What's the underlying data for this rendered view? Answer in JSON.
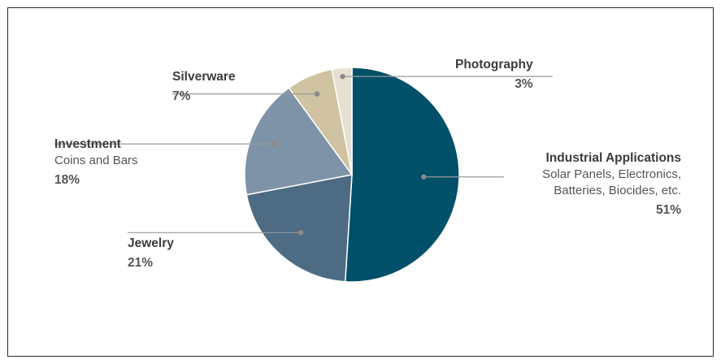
{
  "chart_data": {
    "type": "pie",
    "slices": [
      {
        "name": "Industrial Applications",
        "sub": "Solar Panels, Electronics,",
        "sub2": "Batteries, Biocides, etc.",
        "value": 51,
        "label": "51%",
        "color": "#00506a"
      },
      {
        "name": "Jewelry",
        "value": 21,
        "label": "21%",
        "color": "#4d6b83"
      },
      {
        "name": "Investment",
        "sub": "Coins and Bars",
        "value": 18,
        "label": "18%",
        "color": "#7f93a8"
      },
      {
        "name": "Silverware",
        "value": 7,
        "label": "7%",
        "color": "#cfc3a1"
      },
      {
        "name": "Photography",
        "value": 3,
        "label": "3%",
        "color": "#e6e0d2"
      }
    ]
  }
}
